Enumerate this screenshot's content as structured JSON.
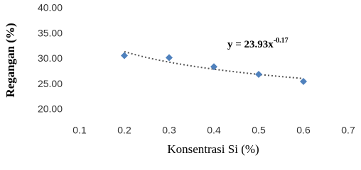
{
  "chart_data": {
    "type": "scatter",
    "x_label": "Konsentrasi Si (%)",
    "y_label": "Regangan (%)",
    "equation": {
      "base": "y = 23.93x",
      "exponent": "-0.17"
    },
    "x": [
      0.2,
      0.3,
      0.4,
      0.5,
      0.6
    ],
    "values": [
      30.7,
      30.3,
      28.5,
      27.0,
      25.6
    ],
    "color": "#4f81bd",
    "trendline": "power",
    "xlim": [
      0.1,
      0.7
    ],
    "xticks": [
      0.1,
      0.2,
      0.3,
      0.4,
      0.5,
      0.6,
      0.7
    ],
    "ylim": [
      20,
      40
    ],
    "yticks": [
      {
        "value": 20,
        "label": "20.00"
      },
      {
        "value": 25,
        "label": "25.00"
      },
      {
        "value": 30,
        "label": "30.00"
      },
      {
        "value": 35,
        "label": "35.00"
      },
      {
        "value": 40,
        "label": "40.00"
      }
    ],
    "grid": false
  }
}
